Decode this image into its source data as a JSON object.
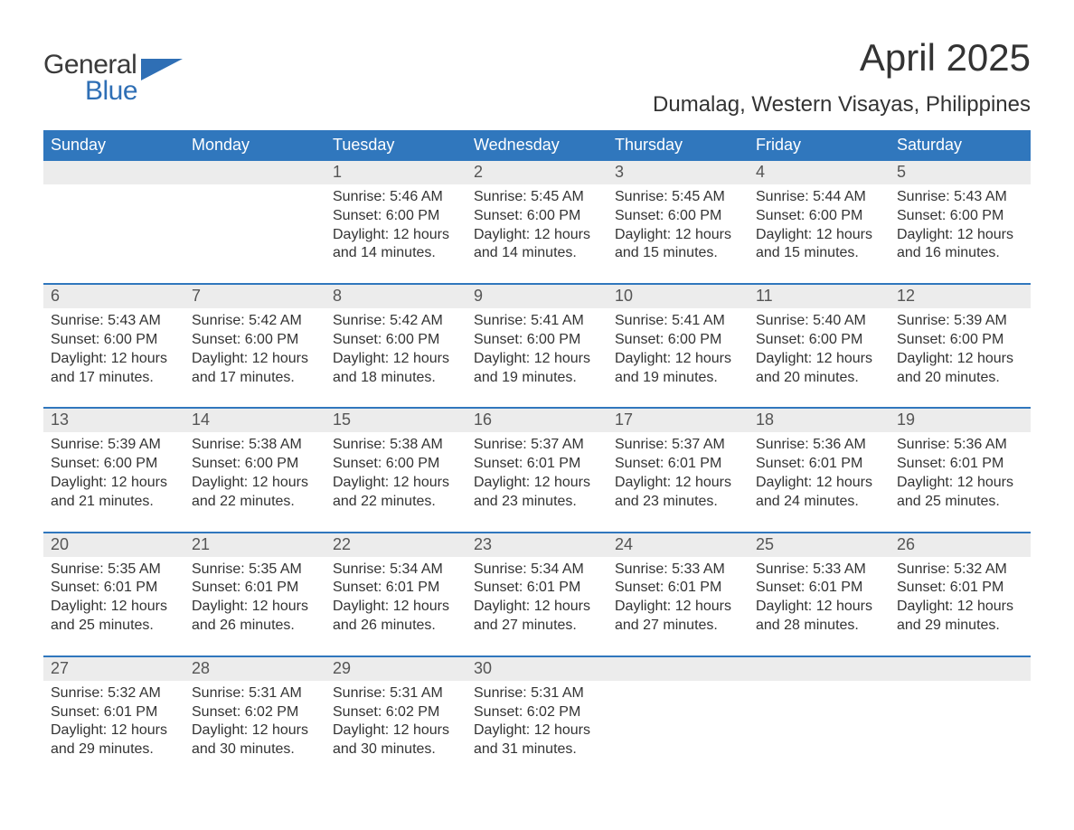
{
  "brand": {
    "word1": "General",
    "word2": "Blue",
    "flag_color": "#2f6fb5"
  },
  "title": "April 2025",
  "location": "Dumalag, Western Visayas, Philippines",
  "colors": {
    "header_bg": "#3077bd",
    "header_text": "#ffffff",
    "strip_bg": "#ececec",
    "rule": "#3077bd",
    "body_text": "#333333"
  },
  "dow": [
    "Sunday",
    "Monday",
    "Tuesday",
    "Wednesday",
    "Thursday",
    "Friday",
    "Saturday"
  ],
  "weeks": [
    [
      null,
      null,
      {
        "n": "1",
        "sr": "5:46 AM",
        "ss": "6:00 PM",
        "dl": "12 hours and 14 minutes."
      },
      {
        "n": "2",
        "sr": "5:45 AM",
        "ss": "6:00 PM",
        "dl": "12 hours and 14 minutes."
      },
      {
        "n": "3",
        "sr": "5:45 AM",
        "ss": "6:00 PM",
        "dl": "12 hours and 15 minutes."
      },
      {
        "n": "4",
        "sr": "5:44 AM",
        "ss": "6:00 PM",
        "dl": "12 hours and 15 minutes."
      },
      {
        "n": "5",
        "sr": "5:43 AM",
        "ss": "6:00 PM",
        "dl": "12 hours and 16 minutes."
      }
    ],
    [
      {
        "n": "6",
        "sr": "5:43 AM",
        "ss": "6:00 PM",
        "dl": "12 hours and 17 minutes."
      },
      {
        "n": "7",
        "sr": "5:42 AM",
        "ss": "6:00 PM",
        "dl": "12 hours and 17 minutes."
      },
      {
        "n": "8",
        "sr": "5:42 AM",
        "ss": "6:00 PM",
        "dl": "12 hours and 18 minutes."
      },
      {
        "n": "9",
        "sr": "5:41 AM",
        "ss": "6:00 PM",
        "dl": "12 hours and 19 minutes."
      },
      {
        "n": "10",
        "sr": "5:41 AM",
        "ss": "6:00 PM",
        "dl": "12 hours and 19 minutes."
      },
      {
        "n": "11",
        "sr": "5:40 AM",
        "ss": "6:00 PM",
        "dl": "12 hours and 20 minutes."
      },
      {
        "n": "12",
        "sr": "5:39 AM",
        "ss": "6:00 PM",
        "dl": "12 hours and 20 minutes."
      }
    ],
    [
      {
        "n": "13",
        "sr": "5:39 AM",
        "ss": "6:00 PM",
        "dl": "12 hours and 21 minutes."
      },
      {
        "n": "14",
        "sr": "5:38 AM",
        "ss": "6:00 PM",
        "dl": "12 hours and 22 minutes."
      },
      {
        "n": "15",
        "sr": "5:38 AM",
        "ss": "6:00 PM",
        "dl": "12 hours and 22 minutes."
      },
      {
        "n": "16",
        "sr": "5:37 AM",
        "ss": "6:01 PM",
        "dl": "12 hours and 23 minutes."
      },
      {
        "n": "17",
        "sr": "5:37 AM",
        "ss": "6:01 PM",
        "dl": "12 hours and 23 minutes."
      },
      {
        "n": "18",
        "sr": "5:36 AM",
        "ss": "6:01 PM",
        "dl": "12 hours and 24 minutes."
      },
      {
        "n": "19",
        "sr": "5:36 AM",
        "ss": "6:01 PM",
        "dl": "12 hours and 25 minutes."
      }
    ],
    [
      {
        "n": "20",
        "sr": "5:35 AM",
        "ss": "6:01 PM",
        "dl": "12 hours and 25 minutes."
      },
      {
        "n": "21",
        "sr": "5:35 AM",
        "ss": "6:01 PM",
        "dl": "12 hours and 26 minutes."
      },
      {
        "n": "22",
        "sr": "5:34 AM",
        "ss": "6:01 PM",
        "dl": "12 hours and 26 minutes."
      },
      {
        "n": "23",
        "sr": "5:34 AM",
        "ss": "6:01 PM",
        "dl": "12 hours and 27 minutes."
      },
      {
        "n": "24",
        "sr": "5:33 AM",
        "ss": "6:01 PM",
        "dl": "12 hours and 27 minutes."
      },
      {
        "n": "25",
        "sr": "5:33 AM",
        "ss": "6:01 PM",
        "dl": "12 hours and 28 minutes."
      },
      {
        "n": "26",
        "sr": "5:32 AM",
        "ss": "6:01 PM",
        "dl": "12 hours and 29 minutes."
      }
    ],
    [
      {
        "n": "27",
        "sr": "5:32 AM",
        "ss": "6:01 PM",
        "dl": "12 hours and 29 minutes."
      },
      {
        "n": "28",
        "sr": "5:31 AM",
        "ss": "6:02 PM",
        "dl": "12 hours and 30 minutes."
      },
      {
        "n": "29",
        "sr": "5:31 AM",
        "ss": "6:02 PM",
        "dl": "12 hours and 30 minutes."
      },
      {
        "n": "30",
        "sr": "5:31 AM",
        "ss": "6:02 PM",
        "dl": "12 hours and 31 minutes."
      },
      null,
      null,
      null
    ]
  ],
  "labels": {
    "sunrise": "Sunrise: ",
    "sunset": "Sunset: ",
    "daylight": "Daylight: "
  }
}
